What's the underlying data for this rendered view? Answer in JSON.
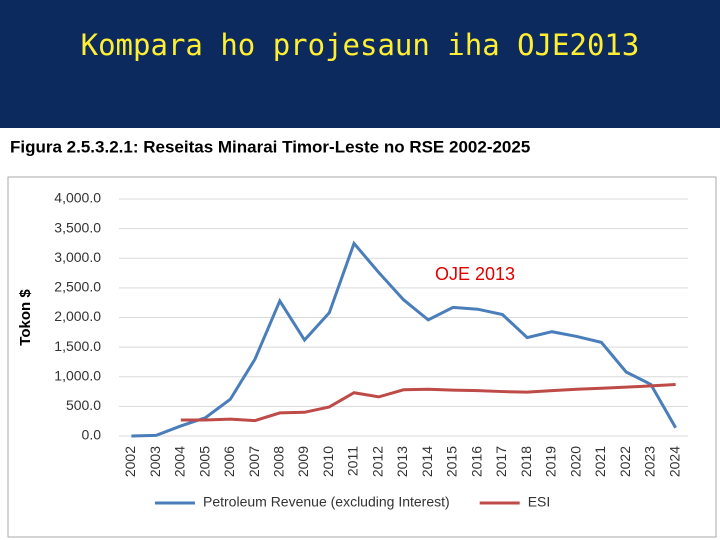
{
  "slide_title": "Kompara ho projesaun iha OJE2013",
  "chart_data": {
    "type": "line",
    "title": "Figura 2.5.3.2.1: Reseitas Minarai Timor-Leste no RSE 2002-2025",
    "y_label": "Tokon $",
    "annotation": "OJE 2013",
    "categories": [
      "2002",
      "2003",
      "2004",
      "2005",
      "2006",
      "2007",
      "2008",
      "2009",
      "2010",
      "2011",
      "2012",
      "2013",
      "2014",
      "2015",
      "2016",
      "2017",
      "2018",
      "2019",
      "2020",
      "2021",
      "2022",
      "2023",
      "2024"
    ],
    "series": [
      {
        "name": "Petroleum Revenue (excluding Interest)",
        "color": "#4a7ebb",
        "values": [
          0,
          10,
          170,
          310,
          620,
          1300,
          2280,
          1620,
          2080,
          3250,
          2760,
          2300,
          1960,
          2170,
          2140,
          2050,
          1660,
          1760,
          1680,
          1580,
          1080,
          870,
          140
        ]
      },
      {
        "name": "ESI",
        "color": "#be4b48",
        "values": [
          null,
          null,
          270,
          270,
          285,
          260,
          390,
          400,
          490,
          730,
          660,
          780,
          790,
          775,
          765,
          750,
          740,
          765,
          790,
          805,
          825,
          845,
          870
        ]
      }
    ],
    "ylim": [
      0,
      4000
    ],
    "yticks": [
      {
        "value": 0,
        "label": "0.0"
      },
      {
        "value": 500,
        "label": "500.0"
      },
      {
        "value": 1000,
        "label": "1,000.0"
      },
      {
        "value": 1500,
        "label": "1,500.0"
      },
      {
        "value": 2000,
        "label": "2,000.0"
      },
      {
        "value": 2500,
        "label": "2,500.0"
      },
      {
        "value": 3000,
        "label": "3,000.0"
      },
      {
        "value": 3500,
        "label": "3,500.0"
      },
      {
        "value": 4000,
        "label": "4,000.0"
      }
    ],
    "grid": true,
    "legend": "bottom"
  }
}
